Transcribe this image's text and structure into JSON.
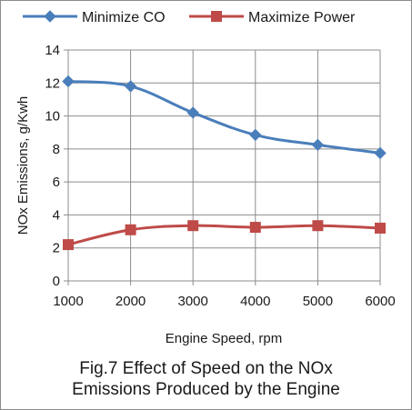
{
  "chart_data": {
    "type": "line",
    "caption_line1": "Fig.7 Effect of Speed on the NOx",
    "caption_line2": "Emissions Produced by the Engine",
    "xlabel": "Engine Speed, rpm",
    "ylabel": "NOx Emissions, g/Kwh",
    "x": [
      1000,
      2000,
      3000,
      4000,
      5000,
      6000
    ],
    "ylim": [
      0,
      14
    ],
    "yticks": [
      0,
      2,
      4,
      6,
      8,
      10,
      12,
      14
    ],
    "grid": true,
    "legend_position": "top",
    "series": [
      {
        "name": "Minimize CO",
        "values": [
          12.1,
          11.8,
          10.2,
          8.85,
          8.25,
          7.75
        ],
        "color": "#4a7ebb",
        "marker": "diamond"
      },
      {
        "name": "Maximize Power",
        "values": [
          2.2,
          3.1,
          3.35,
          3.25,
          3.35,
          3.2
        ],
        "color": "#be4b48",
        "marker": "square"
      }
    ]
  }
}
